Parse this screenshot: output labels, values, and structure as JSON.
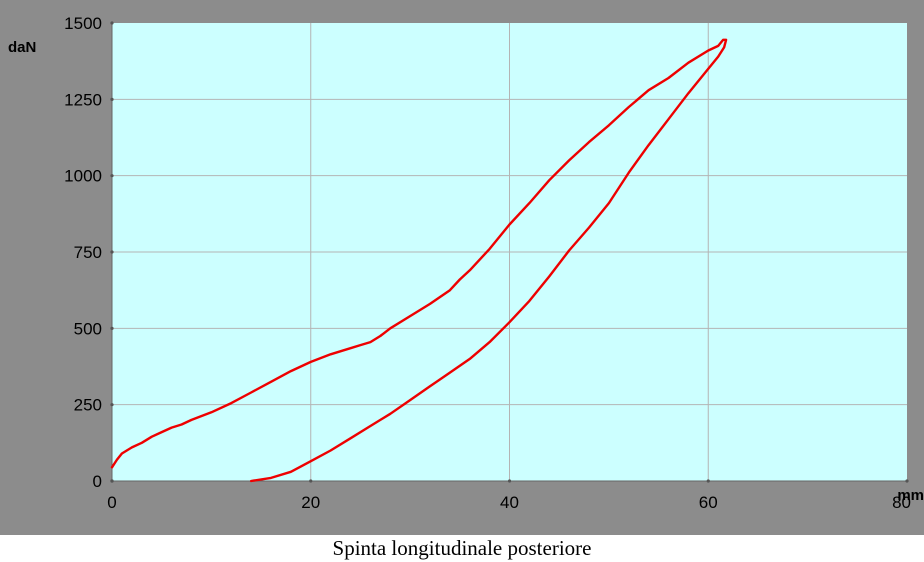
{
  "caption": "Spinta longitudinale posteriore",
  "chart_data": {
    "type": "line",
    "title": "",
    "xlabel": "mm",
    "ylabel": "daN",
    "xlim": [
      0,
      80
    ],
    "ylim": [
      0,
      1500
    ],
    "xticks": [
      0,
      20,
      40,
      60,
      80
    ],
    "yticks": [
      0,
      250,
      500,
      750,
      1000,
      1250,
      1500
    ],
    "grid": true,
    "legend": "none",
    "colors": {
      "frame": "#8c8c8c",
      "plot_background": "#ccffff",
      "grid": "#b4b4b4",
      "line": "#ee0000",
      "text": "#000000"
    },
    "series": [
      {
        "x": [
          0,
          0.5,
          1,
          2,
          3,
          4,
          5,
          6,
          7,
          8,
          10,
          12,
          14,
          16,
          18,
          20,
          22,
          24,
          25,
          26,
          27,
          28,
          30,
          32,
          34,
          35,
          36,
          38,
          40,
          42,
          44,
          46,
          48,
          50,
          52,
          54,
          56,
          58,
          60,
          61,
          61.5,
          61.8,
          61.6,
          61,
          60,
          58,
          56,
          54,
          52,
          50,
          48,
          46,
          44,
          42,
          40,
          38,
          36,
          34,
          32,
          30,
          28,
          26,
          24,
          22,
          20,
          18,
          16,
          14
        ],
        "y": [
          45,
          70,
          90,
          110,
          125,
          145,
          160,
          175,
          185,
          200,
          225,
          255,
          290,
          325,
          360,
          390,
          415,
          435,
          445,
          455,
          475,
          500,
          540,
          580,
          625,
          660,
          690,
          760,
          840,
          910,
          985,
          1050,
          1110,
          1165,
          1225,
          1280,
          1320,
          1370,
          1410,
          1425,
          1445,
          1445,
          1420,
          1390,
          1350,
          1270,
          1185,
          1100,
          1010,
          910,
          830,
          755,
          670,
          590,
          520,
          455,
          400,
          355,
          310,
          265,
          220,
          180,
          140,
          100,
          65,
          30,
          10,
          0
        ]
      }
    ]
  }
}
